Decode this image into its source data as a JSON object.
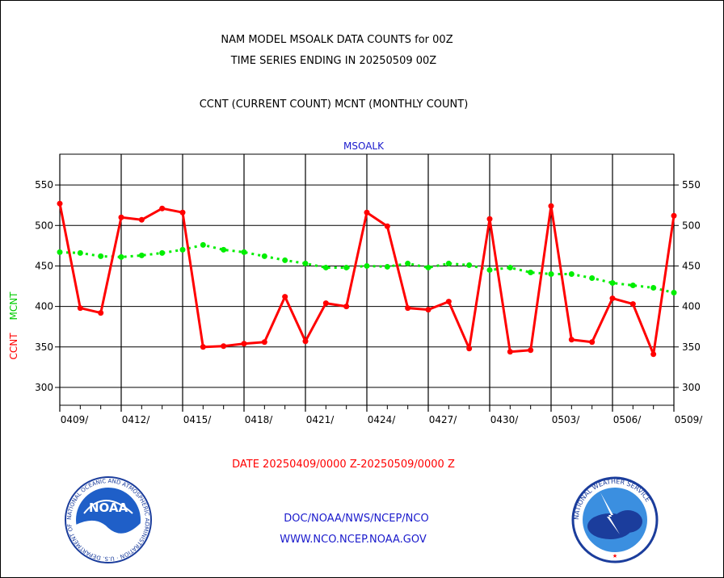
{
  "header": {
    "title_line1": "NAM MODEL MSOALK DATA COUNTS for 00Z",
    "title_line2": "TIME SERIES ENDING IN 20250509 00Z",
    "subtitle": "CCNT (CURRENT COUNT) MCNT (MONTHLY COUNT)"
  },
  "footer": {
    "date_range": "DATE 20250409/0000 Z-20250509/0000 Z",
    "org_line": "DOC/NOAA/NWS/NCEP/NCO",
    "url": "WWW.NCO.NCEP.NOAA.GOV"
  },
  "logos": {
    "noaa": {
      "name": "noaa-logo",
      "text": "NOAA",
      "ring_text": "NATIONAL OCEANIC AND ATMOSPHERIC ADMINISTRATION · U.S. DEPARTMENT OF COMMERCE"
    },
    "nws": {
      "name": "nws-logo",
      "ring_text": "NATIONAL WEATHER SERVICE"
    }
  },
  "colors": {
    "ccnt": "#ff0000",
    "mcnt": "#00ee00",
    "station": "#1a1acc",
    "grid": "#000000"
  },
  "chart_data": {
    "type": "line",
    "station_label": "MSOALK",
    "ylabel_ccnt": "CCNT",
    "ylabel_mcnt": "MCNT",
    "ylim": [
      278,
      588
    ],
    "yticks": [
      300,
      350,
      400,
      450,
      500,
      550
    ],
    "x_tick_labels": [
      "0409/",
      "0412/",
      "0415/",
      "0418/",
      "0421/",
      "0424/",
      "0427/",
      "0430/",
      "0503/",
      "0506/",
      "0509/"
    ],
    "x_range_days": [
      0,
      30
    ],
    "grid": true,
    "series": [
      {
        "name": "CCNT",
        "values": [
          527,
          398,
          392,
          510,
          507,
          521,
          516,
          350,
          351,
          354,
          356,
          412,
          357,
          404,
          400,
          516,
          499,
          398,
          396,
          406,
          348,
          508,
          344,
          346,
          524,
          359,
          356,
          410,
          403,
          341,
          512
        ]
      },
      {
        "name": "MCNT",
        "values": [
          467,
          466,
          462,
          461,
          463,
          466,
          470,
          476,
          470,
          467,
          462,
          457,
          453,
          448,
          448,
          450,
          449,
          453,
          448,
          453,
          451,
          445,
          448,
          442,
          440,
          440,
          435,
          429,
          426,
          423,
          417
        ]
      }
    ]
  }
}
